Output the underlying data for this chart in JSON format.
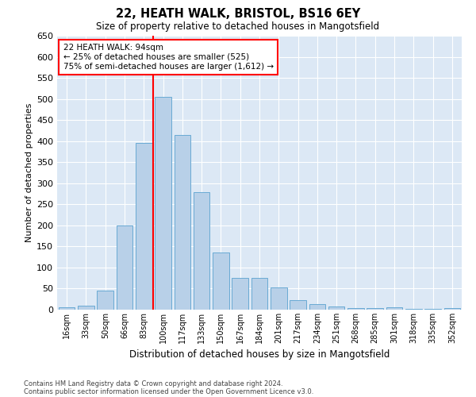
{
  "title1": "22, HEATH WALK, BRISTOL, BS16 6EY",
  "title2": "Size of property relative to detached houses in Mangotsfield",
  "xlabel": "Distribution of detached houses by size in Mangotsfield",
  "ylabel": "Number of detached properties",
  "bar_color": "#b8d0e8",
  "bar_edge_color": "#6aaad4",
  "background_color": "#dce8f5",
  "categories": [
    "16sqm",
    "33sqm",
    "50sqm",
    "66sqm",
    "83sqm",
    "100sqm",
    "117sqm",
    "133sqm",
    "150sqm",
    "167sqm",
    "184sqm",
    "201sqm",
    "217sqm",
    "234sqm",
    "251sqm",
    "268sqm",
    "285sqm",
    "301sqm",
    "318sqm",
    "335sqm",
    "352sqm"
  ],
  "values": [
    5,
    10,
    45,
    200,
    395,
    505,
    415,
    278,
    135,
    75,
    75,
    52,
    22,
    13,
    7,
    3,
    3,
    5,
    2,
    1,
    3
  ],
  "ylim": [
    0,
    650
  ],
  "yticks": [
    0,
    50,
    100,
    150,
    200,
    250,
    300,
    350,
    400,
    450,
    500,
    550,
    600,
    650
  ],
  "property_line_x": 4.5,
  "annotation_title": "22 HEATH WALK: 94sqm",
  "annotation_line1": "← 25% of detached houses are smaller (525)",
  "annotation_line2": "75% of semi-detached houses are larger (1,612) →",
  "footnote1": "Contains HM Land Registry data © Crown copyright and database right 2024.",
  "footnote2": "Contains public sector information licensed under the Open Government Licence v3.0."
}
